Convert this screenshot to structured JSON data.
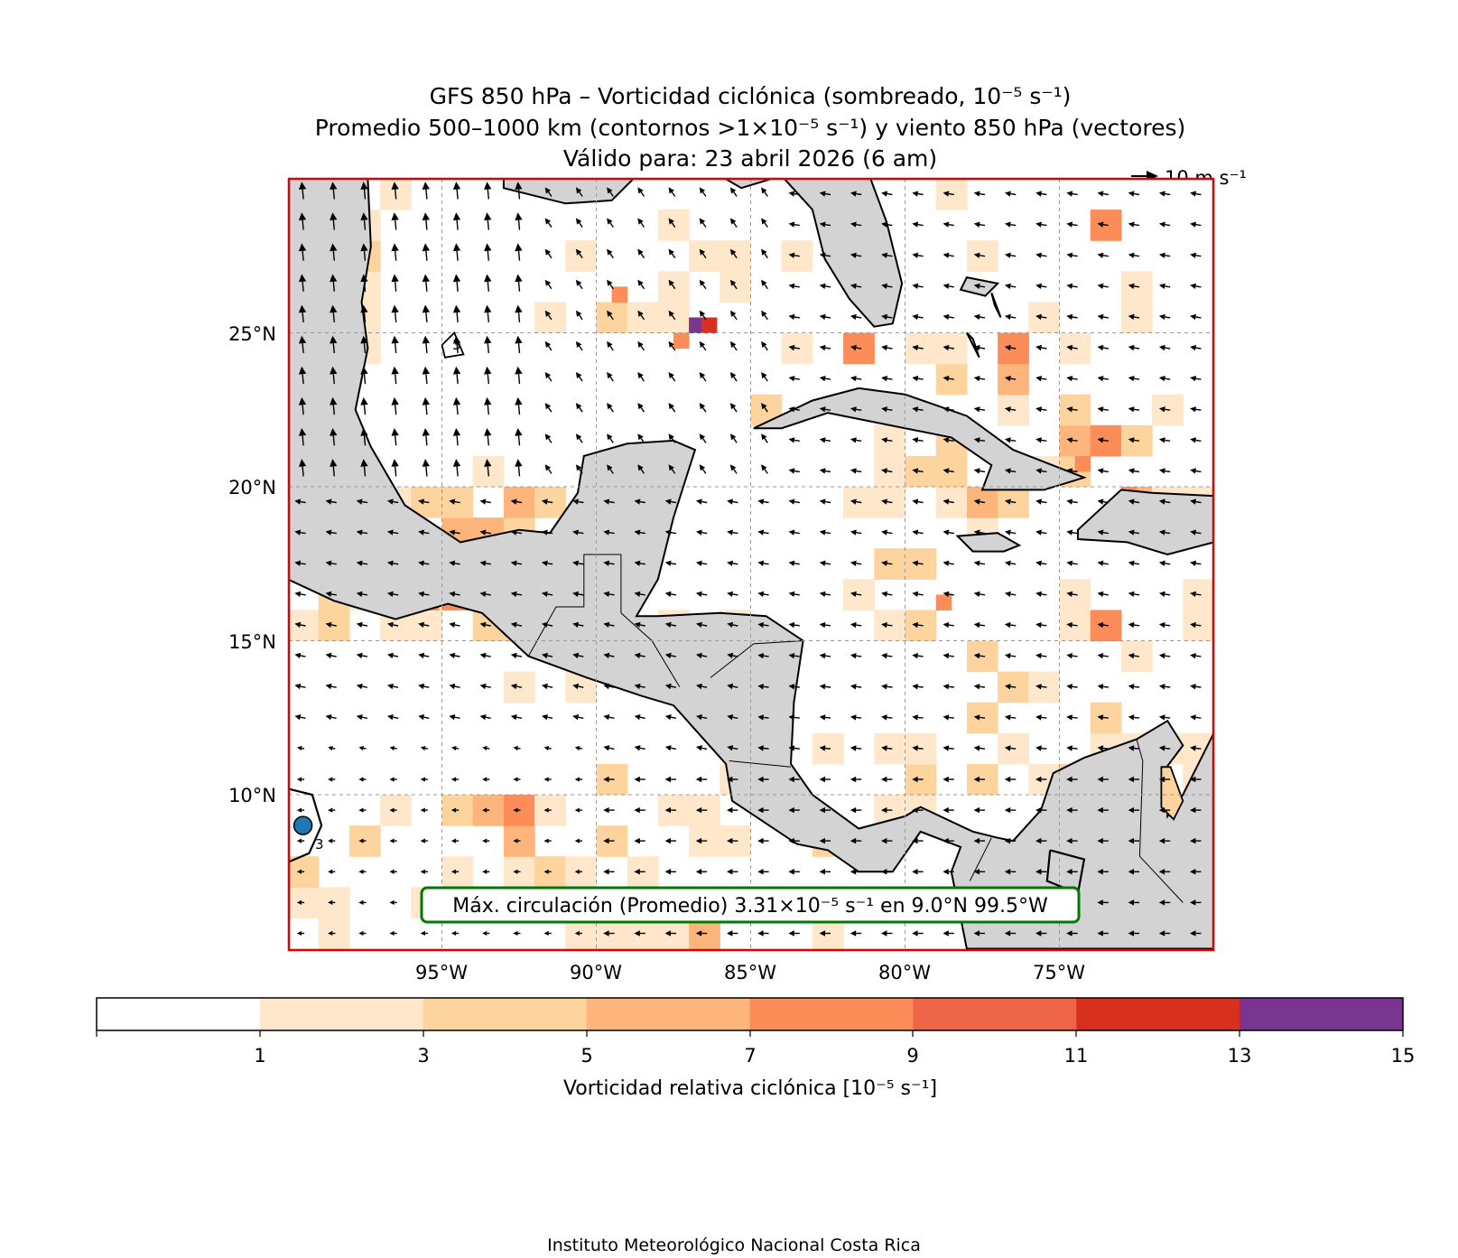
{
  "title": {
    "line1": "GFS 850 hPa – Vorticidad ciclónica (sombreado, 10⁻⁵ s⁻¹)",
    "line2": "Promedio 500–1000 km (contornos >1×10⁻⁵ s⁻¹) y viento 850 hPa (vectores)",
    "line3": "Válido para: 23 abril 2026 (6 am)"
  },
  "wind_key_label": "10 m s⁻¹",
  "map": {
    "lon_ticks": [
      "95°W",
      "90°W",
      "85°W",
      "80°W",
      "75°W"
    ],
    "lat_ticks": [
      "25°N",
      "20°N",
      "15°N",
      "10°N"
    ],
    "contour_label": "3",
    "max_annotation": "Máx. circulación (Promedio) 3.31×10⁻⁵ s⁻¹ en 9.0°N 99.5°W",
    "max_point": {
      "lat": 9.0,
      "lon": -99.5
    },
    "colors": {
      "land": "#d3d3d3",
      "frame": "#e00000",
      "annotation_border": "#007a00",
      "max_marker": "#1f77b4"
    }
  },
  "colorbar": {
    "label": "Vorticidad relativa ciclónica [10⁻⁵ s⁻¹]",
    "ticks": [
      "1",
      "3",
      "5",
      "7",
      "9",
      "11",
      "13",
      "15"
    ],
    "levels": [
      {
        "from": -1,
        "to": 1,
        "color": "#ffffff"
      },
      {
        "from": 1,
        "to": 3,
        "color": "#fee7cb"
      },
      {
        "from": 3,
        "to": 5,
        "color": "#fdd49e"
      },
      {
        "from": 5,
        "to": 7,
        "color": "#fdb57c"
      },
      {
        "from": 7,
        "to": 9,
        "color": "#fc8d59"
      },
      {
        "from": 9,
        "to": 11,
        "color": "#ef6548"
      },
      {
        "from": 11,
        "to": 13,
        "color": "#d7301f"
      },
      {
        "from": 13,
        "to": 15,
        "color": "#7a3590"
      }
    ]
  },
  "footer": "Instituto Meteorológico Nacional Costa Rica"
}
